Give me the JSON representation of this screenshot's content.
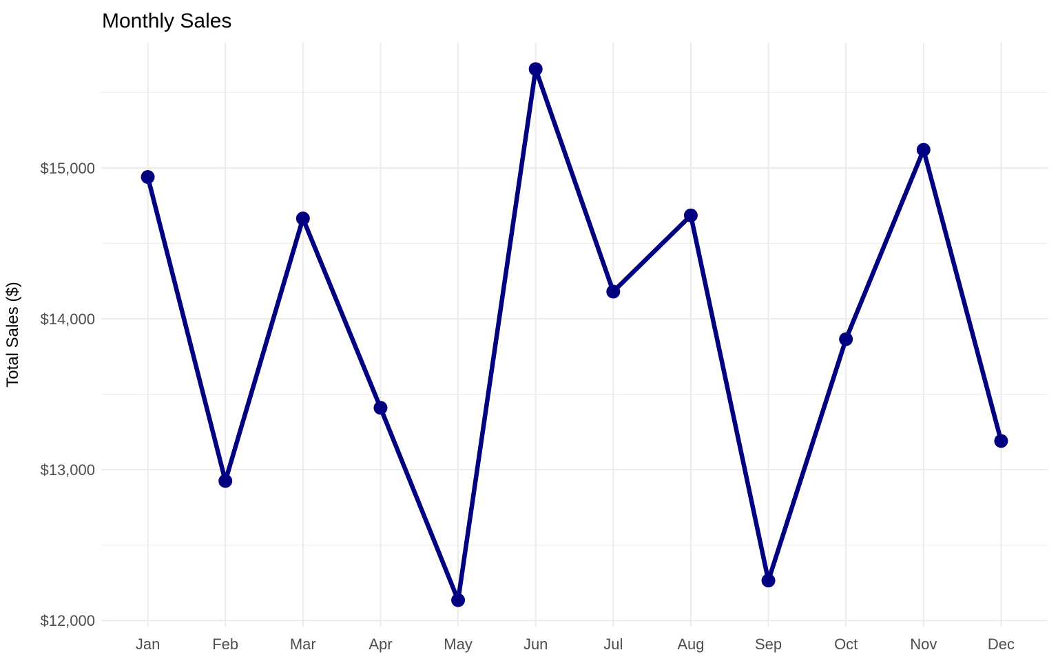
{
  "chart_data": {
    "type": "line",
    "title": "Monthly Sales",
    "xlabel": "",
    "ylabel": "Total Sales ($)",
    "categories": [
      "Jan",
      "Feb",
      "Mar",
      "Apr",
      "May",
      "Jun",
      "Jul",
      "Aug",
      "Sep",
      "Oct",
      "Nov",
      "Dec"
    ],
    "values": [
      14940,
      12925,
      14665,
      13410,
      12135,
      15655,
      14180,
      14685,
      12265,
      13865,
      15120,
      13190
    ],
    "ylim": [
      11960,
      15830
    ],
    "y_major_ticks": [
      12000,
      13000,
      14000,
      15000
    ],
    "y_tick_labels": [
      "$12,000",
      "$13,000",
      "$14,000",
      "$15,000"
    ],
    "y_minor_ticks": [
      12500,
      13500,
      14500,
      15500
    ],
    "grid": "on",
    "legend_position": "none",
    "colors": {
      "line": "#000080",
      "point": "#000080",
      "grid_major": "#EBEBEB",
      "grid_minor": "#EFEFEF",
      "tick_label": "#4D4D4D",
      "title": "#000000",
      "axis_title": "#000000",
      "background": "#FFFFFF"
    },
    "style": {
      "point_radius": 10,
      "line_width": 6.5
    }
  }
}
